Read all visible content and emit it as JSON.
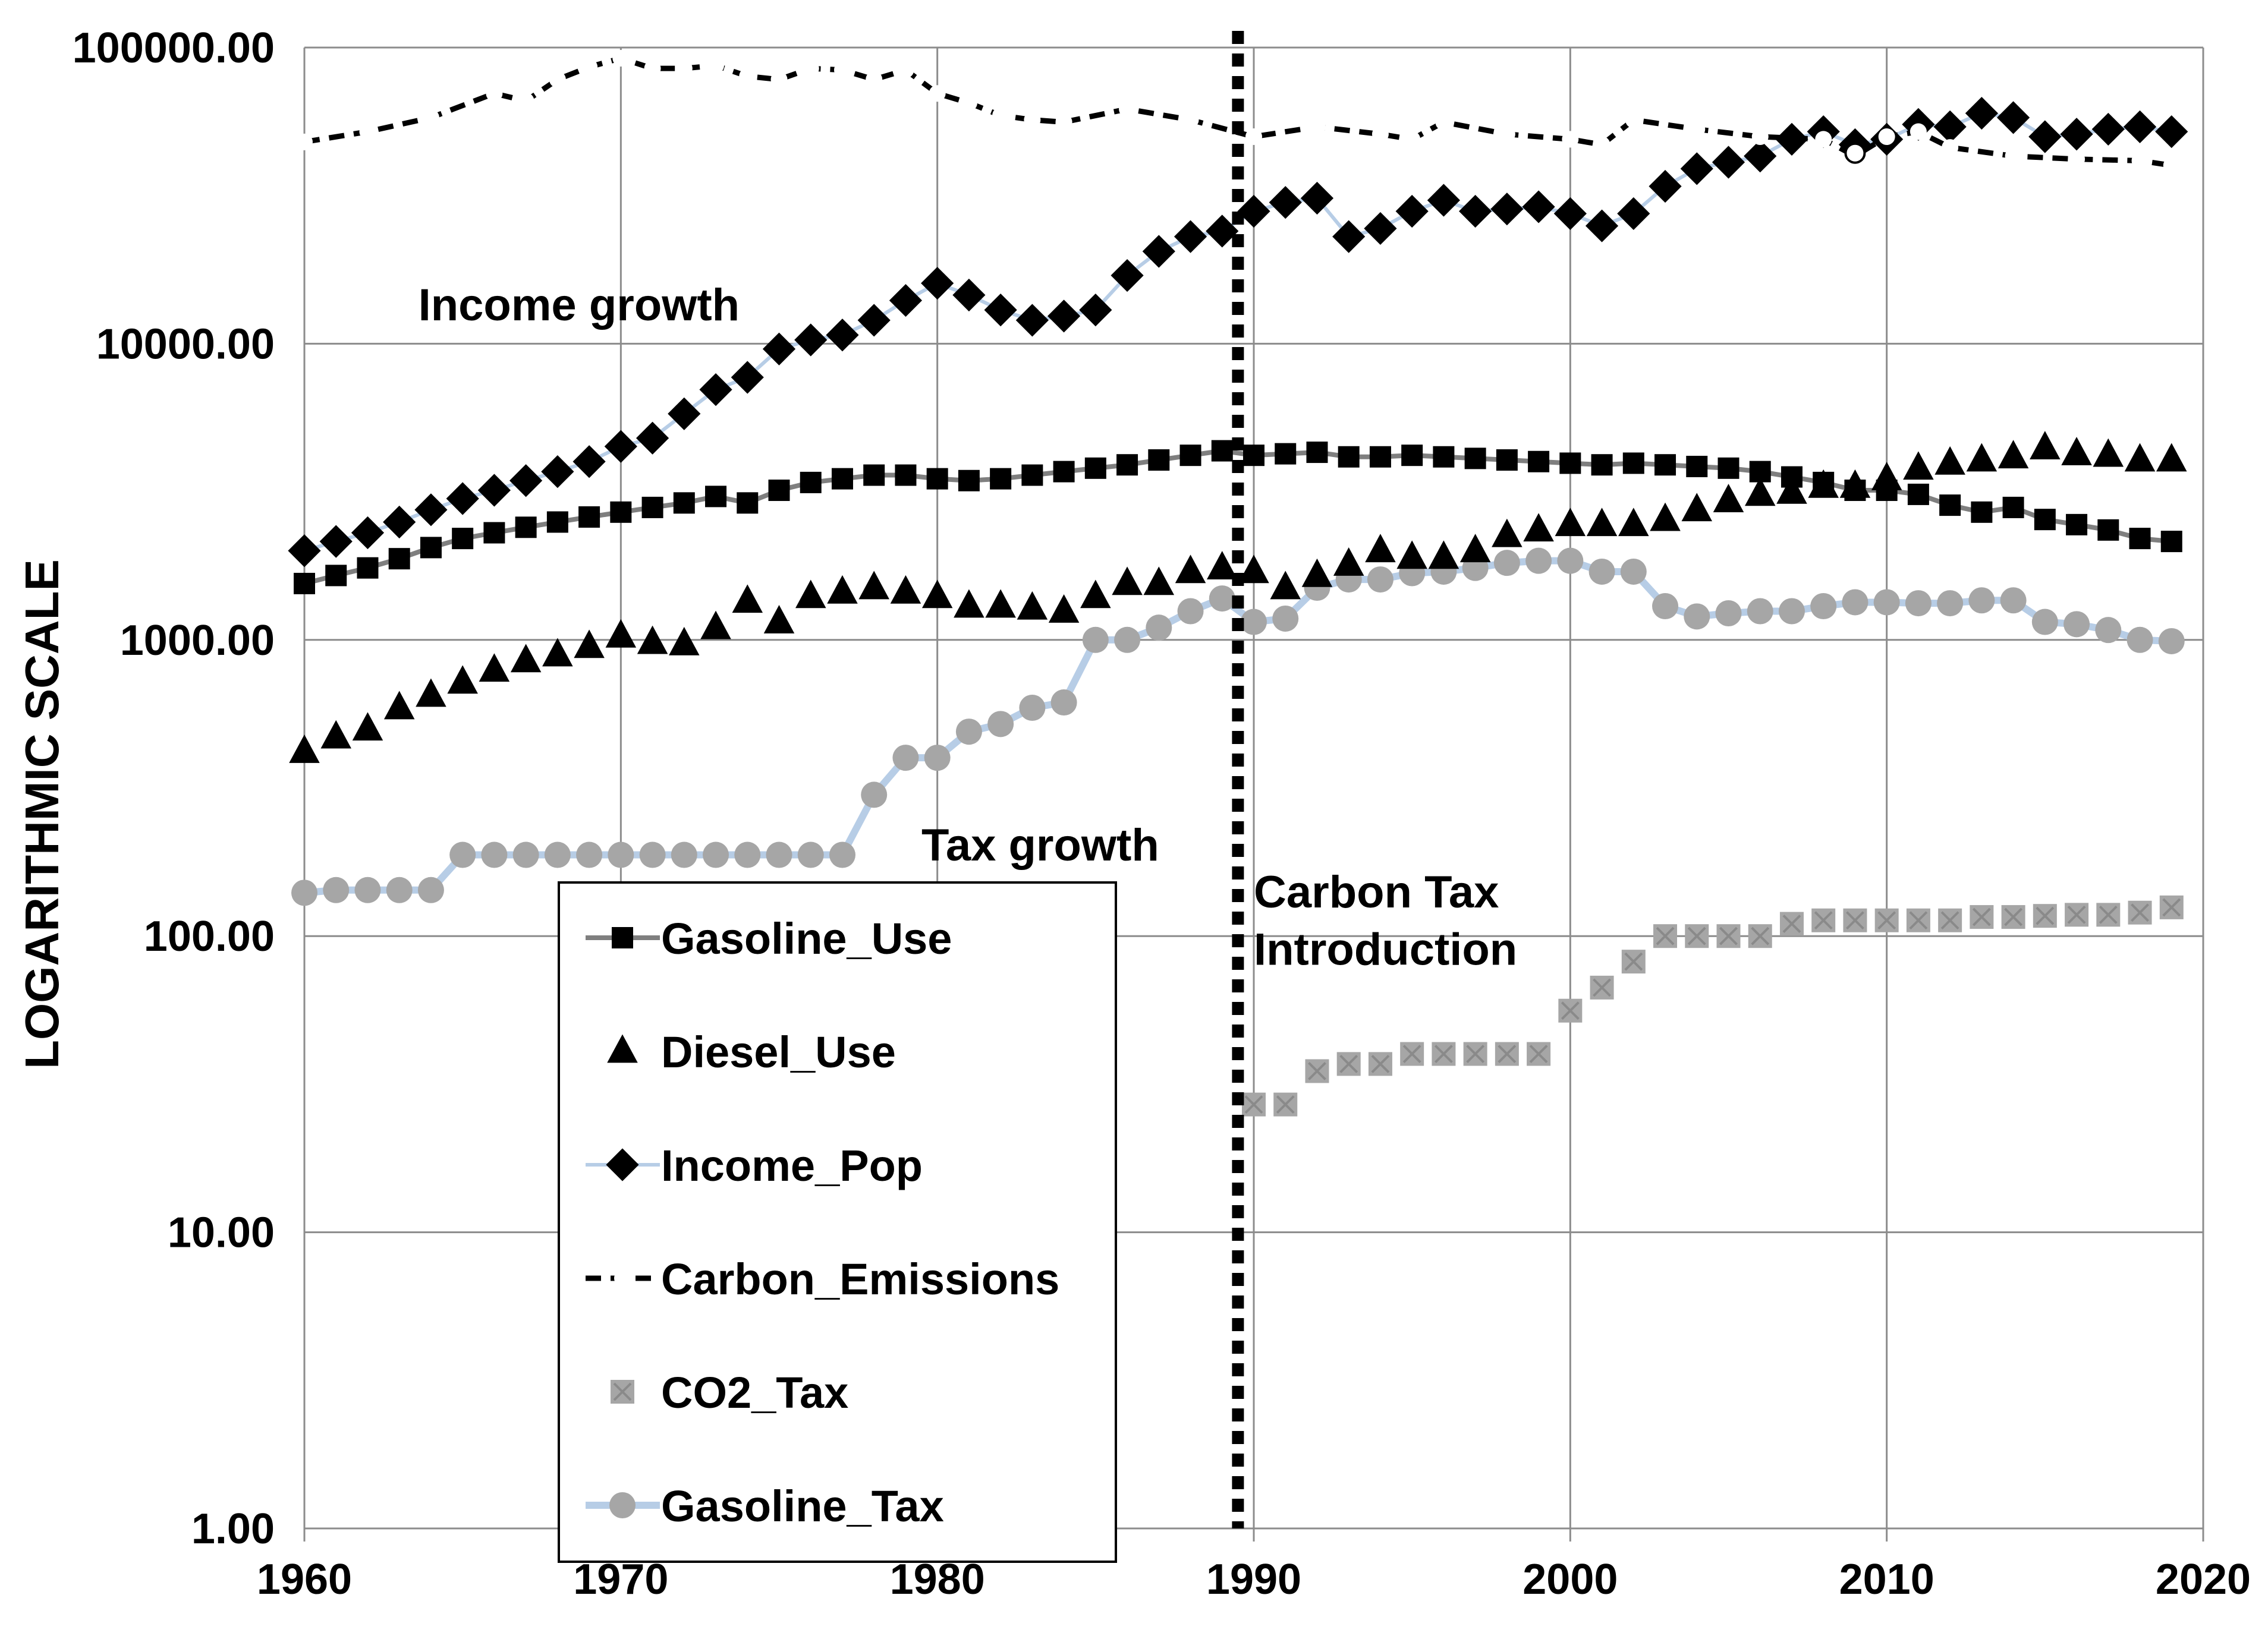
{
  "chart_data": {
    "type": "line",
    "title": "",
    "xlabel": "",
    "ylabel": "LOGARITHMIC   SCALE",
    "y_scale": "log",
    "xlim": [
      1960,
      2020
    ],
    "ylim": [
      1,
      100000
    ],
    "x_ticks": [
      "1960",
      "1970",
      "1980",
      "1990",
      "2000",
      "2010",
      "2020"
    ],
    "y_ticks": [
      "1.00",
      "10.00",
      "100.00",
      "1000.00",
      "10000.00",
      "100000.00"
    ],
    "grid": true,
    "legend_position": "bottom-left inside",
    "annotations": [
      {
        "text": "Income growth",
        "x": 1963.6,
        "y": 12000
      },
      {
        "text": "Tax growth",
        "x": 1979.5,
        "y": 180
      },
      {
        "text": "Carbon Tax",
        "x": 1990,
        "y": 125
      },
      {
        "text": "Introduction",
        "x": 1990,
        "y": 80
      }
    ],
    "marker_line": {
      "x": 1989.5,
      "style": "dotted"
    },
    "series": [
      {
        "name": "Gasoline_Use",
        "x": [
          1960,
          1961,
          1962,
          1963,
          1964,
          1965,
          1966,
          1967,
          1968,
          1969,
          1970,
          1971,
          1972,
          1973,
          1974,
          1975,
          1976,
          1977,
          1978,
          1979,
          1980,
          1981,
          1982,
          1983,
          1984,
          1985,
          1986,
          1987,
          1988,
          1989,
          1990,
          1991,
          1992,
          1993,
          1994,
          1995,
          1996,
          1997,
          1998,
          1999,
          2000,
          2001,
          2002,
          2003,
          2004,
          2005,
          2006,
          2007,
          2008,
          2009,
          2010,
          2011,
          2012,
          2013,
          2014,
          2015,
          2016,
          2017,
          2018,
          2019
        ],
        "values": [
          1550,
          1650,
          1750,
          1880,
          2050,
          2200,
          2300,
          2400,
          2500,
          2600,
          2700,
          2800,
          2900,
          3050,
          2900,
          3200,
          3400,
          3500,
          3600,
          3600,
          3500,
          3450,
          3500,
          3600,
          3700,
          3800,
          3900,
          4050,
          4200,
          4350,
          4200,
          4250,
          4300,
          4150,
          4150,
          4200,
          4150,
          4100,
          4050,
          4000,
          3950,
          3900,
          3950,
          3900,
          3850,
          3800,
          3700,
          3550,
          3400,
          3200,
          3200,
          3100,
          2850,
          2700,
          2800,
          2550,
          2450,
          2350,
          2200,
          2150
        ]
      },
      {
        "name": "Diesel_Use",
        "x": [
          1960,
          1961,
          1962,
          1963,
          1964,
          1965,
          1966,
          1967,
          1968,
          1969,
          1970,
          1971,
          1972,
          1973,
          1974,
          1975,
          1976,
          1977,
          1978,
          1979,
          1980,
          1981,
          1982,
          1983,
          1984,
          1985,
          1986,
          1987,
          1988,
          1989,
          1990,
          1991,
          1992,
          1993,
          1994,
          1995,
          1996,
          1997,
          1998,
          1999,
          2000,
          2001,
          2002,
          2003,
          2004,
          2005,
          2006,
          2007,
          2008,
          2009,
          2010,
          2011,
          2012,
          2013,
          2014,
          2015,
          2016,
          2017,
          2018,
          2019
        ],
        "values": [
          420,
          470,
          500,
          590,
          650,
          720,
          790,
          850,
          890,
          950,
          1030,
          980,
          970,
          1100,
          1350,
          1150,
          1400,
          1450,
          1500,
          1450,
          1400,
          1300,
          1300,
          1280,
          1250,
          1400,
          1550,
          1550,
          1700,
          1750,
          1700,
          1500,
          1650,
          1800,
          2000,
          1900,
          1900,
          2000,
          2250,
          2350,
          2450,
          2450,
          2450,
          2550,
          2750,
          2950,
          3100,
          3150,
          3300,
          3300,
          3500,
          3800,
          3950,
          4050,
          4150,
          4450,
          4250,
          4200,
          4050,
          4050
        ]
      },
      {
        "name": "Income_Pop",
        "x": [
          1960,
          1961,
          1962,
          1963,
          1964,
          1965,
          1966,
          1967,
          1968,
          1969,
          1970,
          1971,
          1972,
          1973,
          1974,
          1975,
          1976,
          1977,
          1978,
          1979,
          1980,
          1981,
          1982,
          1983,
          1984,
          1985,
          1986,
          1987,
          1988,
          1989,
          1990,
          1991,
          1992,
          1993,
          1994,
          1995,
          1996,
          1997,
          1998,
          1999,
          2000,
          2001,
          2002,
          2003,
          2004,
          2005,
          2006,
          2007,
          2008,
          2009,
          2010,
          2011,
          2012,
          2013,
          2014,
          2015,
          2016,
          2017,
          2018,
          2019
        ],
        "values": [
          2000,
          2150,
          2300,
          2500,
          2750,
          3000,
          3200,
          3450,
          3700,
          4000,
          4500,
          4800,
          5800,
          7000,
          7700,
          9600,
          10300,
          10700,
          12000,
          14000,
          16000,
          14600,
          13000,
          12000,
          12400,
          13000,
          17000,
          20500,
          23000,
          24000,
          28000,
          30000,
          31000,
          23000,
          24500,
          28000,
          30500,
          28000,
          28500,
          29000,
          27500,
          25000,
          27500,
          34000,
          39000,
          41000,
          43000,
          49000,
          52000,
          47000,
          49000,
          55000,
          54000,
          60000,
          58000,
          50000,
          51000,
          53000,
          54000,
          52000
        ]
      },
      {
        "name": "Carbon_Emissions",
        "x": [
          1960,
          1962,
          1964,
          1966,
          1967,
          1968,
          1969,
          1970,
          1971,
          1972,
          1973,
          1974,
          1975,
          1976,
          1977,
          1978,
          1979,
          1980,
          1981,
          1982,
          1983,
          1984,
          1986,
          1988,
          1990,
          1992,
          1994,
          1995,
          1996,
          1998,
          2000,
          2001,
          2002,
          2004,
          2006,
          2008,
          2009,
          2010,
          2011,
          2012,
          2014,
          2016,
          2018,
          2019
        ],
        "values": [
          48000,
          52000,
          58000,
          70000,
          66000,
          78000,
          86000,
          92000,
          85000,
          85000,
          87000,
          80000,
          78000,
          85000,
          84000,
          78000,
          84000,
          70000,
          65000,
          59000,
          57000,
          56000,
          62000,
          57000,
          50000,
          54000,
          51000,
          49000,
          56000,
          51000,
          49000,
          47000,
          57000,
          53000,
          50000,
          49000,
          43000,
          50000,
          52000,
          46000,
          43000,
          42000,
          41500,
          40000
        ]
      },
      {
        "name": "CO2_Tax",
        "x": [
          1990,
          1991,
          1992,
          1993,
          1994,
          1995,
          1996,
          1997,
          1998,
          1999,
          2000,
          2001,
          2002,
          2003,
          2004,
          2005,
          2006,
          2007,
          2008,
          2009,
          2010,
          2011,
          2012,
          2013,
          2014,
          2015,
          2016,
          2017,
          2018,
          2019
        ],
        "values": [
          27,
          27,
          35,
          37,
          37,
          40,
          40,
          40,
          40,
          40,
          56,
          67,
          82,
          100,
          100,
          100,
          100,
          110,
          113,
          113,
          113,
          113,
          113,
          116,
          116,
          117,
          118,
          118,
          120,
          125
        ]
      },
      {
        "name": "Gasoline_Tax",
        "x": [
          1960,
          1961,
          1962,
          1963,
          1964,
          1965,
          1966,
          1967,
          1968,
          1969,
          1970,
          1971,
          1972,
          1973,
          1974,
          1975,
          1976,
          1977,
          1978,
          1979,
          1980,
          1981,
          1982,
          1983,
          1984,
          1985,
          1986,
          1987,
          1988,
          1989,
          1990,
          1991,
          1992,
          1993,
          1994,
          1995,
          1996,
          1997,
          1998,
          1999,
          2000,
          2001,
          2002,
          2003,
          2004,
          2005,
          2006,
          2007,
          2008,
          2009,
          2010,
          2011,
          2012,
          2013,
          2014,
          2015,
          2016,
          2017,
          2018,
          2019
        ],
        "values": [
          140,
          143,
          143,
          143,
          143,
          188,
          188,
          188,
          188,
          188,
          188,
          188,
          188,
          188,
          188,
          188,
          188,
          188,
          300,
          400,
          400,
          490,
          520,
          590,
          615,
          1000,
          1000,
          1100,
          1250,
          1380,
          1150,
          1180,
          1500,
          1600,
          1600,
          1680,
          1700,
          1750,
          1820,
          1850,
          1850,
          1700,
          1700,
          1300,
          1200,
          1230,
          1250,
          1250,
          1300,
          1340,
          1340,
          1330,
          1330,
          1360,
          1360,
          1150,
          1130,
          1080,
          1000,
          990
        ]
      }
    ]
  }
}
